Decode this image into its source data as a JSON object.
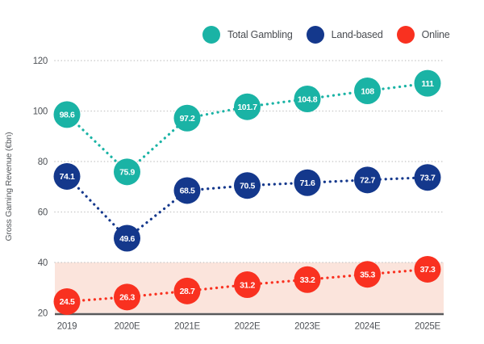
{
  "legend": {
    "items": [
      {
        "label": "Total Gambling",
        "icon": "legend-dot-total-gambling"
      },
      {
        "label": "Land-based",
        "icon": "legend-dot-land-based"
      },
      {
        "label": "Online",
        "icon": "legend-dot-online"
      }
    ]
  },
  "chart_data": {
    "type": "line",
    "title": "",
    "xlabel": "",
    "ylabel": "Gross Gaming Revenue (€bn)",
    "categories": [
      "2019",
      "2020E",
      "2021E",
      "2022E",
      "2023E",
      "2024E",
      "2025E"
    ],
    "series": [
      {
        "name": "Total Gambling",
        "color": "#1ab3a5",
        "values": [
          98.6,
          75.9,
          97.2,
          101.7,
          104.8,
          108,
          111
        ]
      },
      {
        "name": "Land-based",
        "color": "#14388c",
        "values": [
          74.1,
          49.6,
          68.5,
          70.5,
          71.6,
          72.7,
          73.7
        ]
      },
      {
        "name": "Online",
        "color": "#f93120",
        "values": [
          24.5,
          26.3,
          28.7,
          31.2,
          33.2,
          35.3,
          37.3
        ]
      }
    ],
    "ylim": [
      20,
      120
    ],
    "yticks": [
      20,
      40,
      60,
      80,
      100,
      120
    ],
    "grid": "horizontal-dotted",
    "line_style": "dotted",
    "marker": "circle-with-value-label",
    "legend_position": "top",
    "highlight_band": {
      "from": 20,
      "to": 40,
      "color": "#fbe4dc"
    },
    "colors": {
      "grid_line": "#c9c9c9",
      "axis_line": "#58595b",
      "tick_text": "#4d5156",
      "marker_label_text": "#ffffff"
    }
  }
}
